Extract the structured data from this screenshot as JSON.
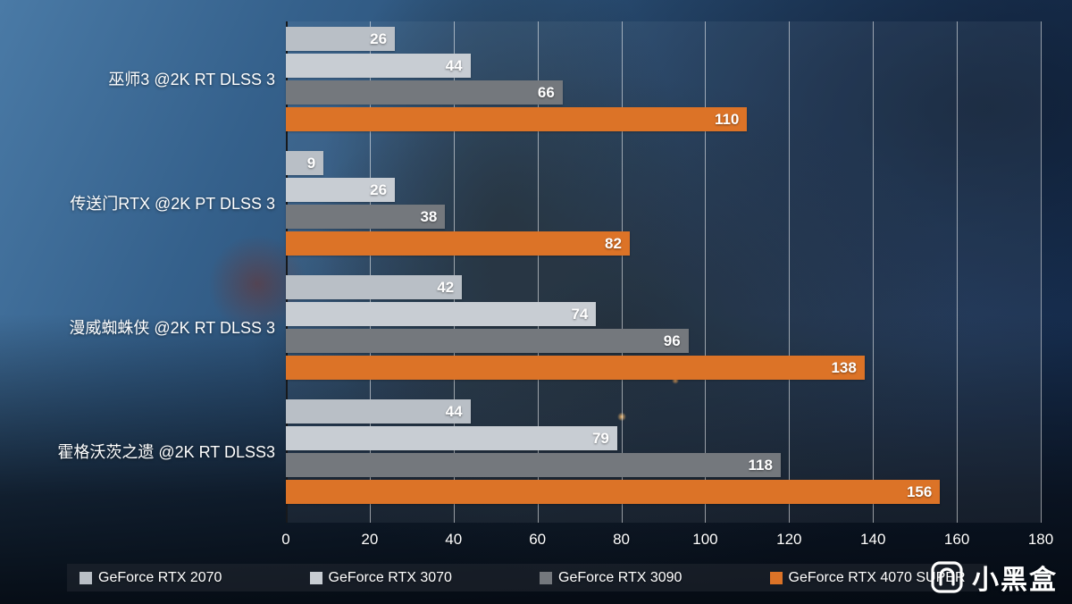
{
  "chart_data": {
    "type": "bar",
    "orientation": "horizontal",
    "title": "",
    "categories": [
      "巫师3 @2K RT DLSS 3",
      "传送门RTX @2K PT DLSS 3",
      "漫威蜘蛛侠 @2K RT DLSS 3",
      "霍格沃茨之遗 @2K RT DLSS3"
    ],
    "series": [
      {
        "name": "GeForce RTX 2070",
        "color": "#b9bfc6",
        "values": [
          26,
          9,
          42,
          44
        ]
      },
      {
        "name": "GeForce RTX 3070",
        "color": "#c8cdd3",
        "values": [
          44,
          26,
          74,
          79
        ]
      },
      {
        "name": "GeForce RTX 3090",
        "color": "#74787d",
        "values": [
          66,
          38,
          96,
          118
        ]
      },
      {
        "name": "GeForce RTX 4070 SUPER",
        "color": "#dc7327",
        "values": [
          110,
          82,
          138,
          156
        ]
      }
    ],
    "xlim": [
      0,
      180
    ],
    "xticks": [
      0,
      20,
      40,
      60,
      80,
      100,
      120,
      140,
      160,
      180
    ],
    "grid": true,
    "legend_position": "bottom",
    "value_labels": "inside-end"
  },
  "watermark": {
    "text": "小黑盒"
  }
}
